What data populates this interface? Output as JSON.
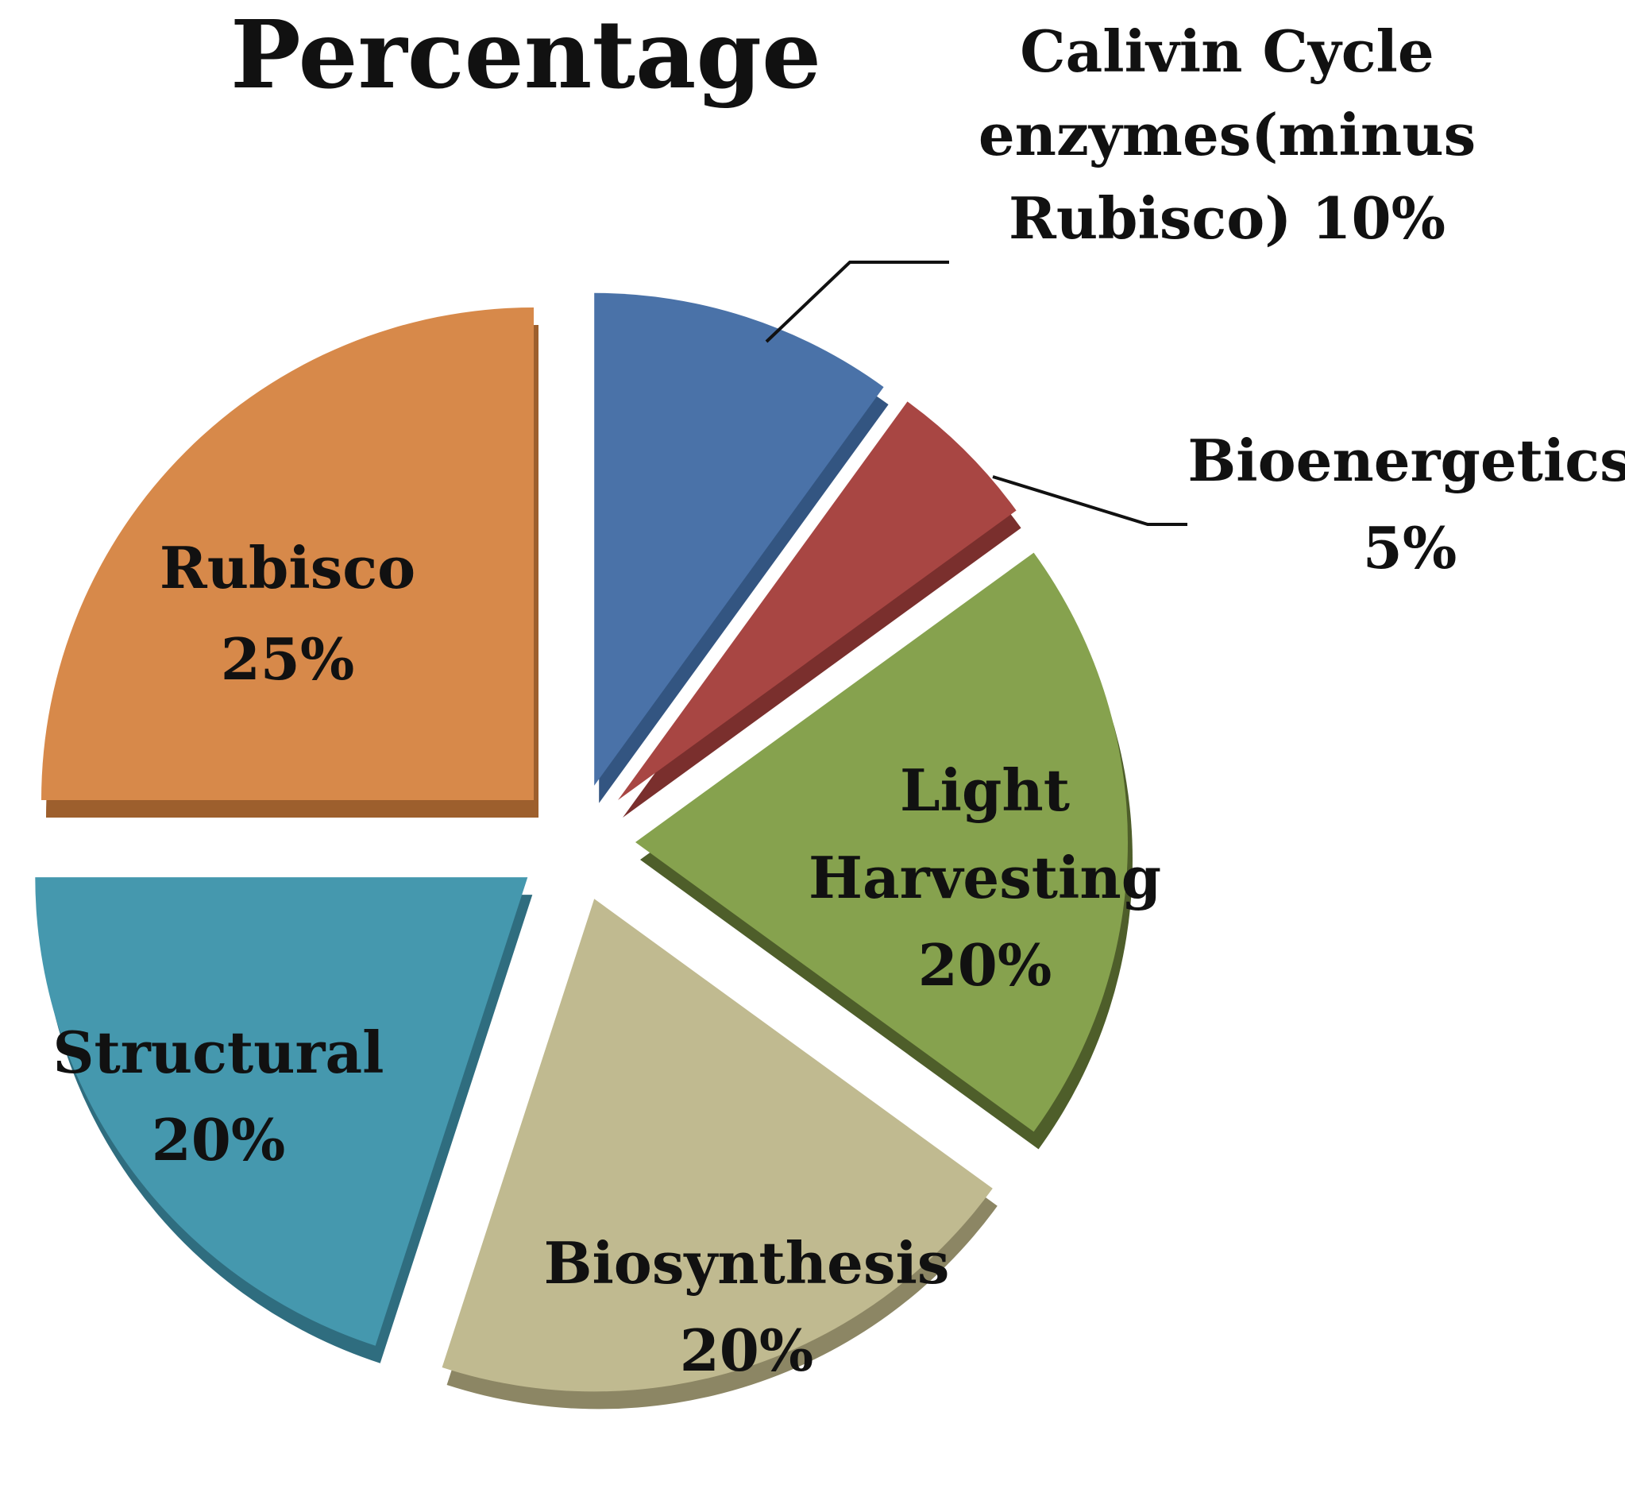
{
  "chart_data": {
    "type": "pie",
    "title": "Percentage",
    "categories": [
      "Calivin Cycle enzymes(minus Rubisco)",
      "Bioenergetics",
      "Light Harvesting",
      "Biosynthesis",
      "Structural",
      "Rubisco"
    ],
    "values": [
      10,
      5,
      20,
      20,
      20,
      25
    ],
    "exploded": true,
    "style_3d": true,
    "colors": [
      "#4A72A8",
      "#A84643",
      "#86A24E",
      "#C0BA90",
      "#4598AE",
      "#D7894A"
    ],
    "side_colors": [
      "#335581",
      "#7A2F2D",
      "#4E5E2A",
      "#8C8664",
      "#2F6D7F",
      "#9D5F2D"
    ],
    "slices": [
      {
        "name": "Calivin Cycle enzymes(minus Rubisco)",
        "value": 10,
        "label_lines": [
          "Calivin Cycle",
          "enzymes(minus",
          "Rubisco) 10%"
        ],
        "label_position": "outside",
        "leader_line": true
      },
      {
        "name": "Bioenergetics",
        "value": 5,
        "label_lines": [
          "Bioenergetics",
          "5%"
        ],
        "label_position": "outside",
        "leader_line": true
      },
      {
        "name": "Light Harvesting",
        "value": 20,
        "label_lines": [
          "Light",
          "Harvesting",
          "20%"
        ],
        "label_position": "inside",
        "leader_line": false
      },
      {
        "name": "Biosynthesis",
        "value": 20,
        "label_lines": [
          "Biosynthesis",
          "20%"
        ],
        "label_position": "inside",
        "leader_line": false
      },
      {
        "name": "Structural",
        "value": 20,
        "label_lines": [
          "Structural",
          "20%"
        ],
        "label_position": "inside",
        "leader_line": false
      },
      {
        "name": "Rubisco",
        "value": 25,
        "label_lines": [
          "Rubisco",
          "25%"
        ],
        "label_position": "inside",
        "leader_line": false
      }
    ]
  }
}
